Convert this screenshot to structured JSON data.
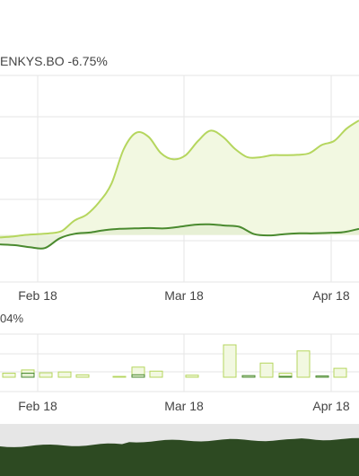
{
  "legend": {
    "series_label": "ENKYS.BO -6.75%"
  },
  "volume_label": "04%",
  "colors": {
    "light_series": "#b5d65e",
    "light_fill": "#f2f8e1",
    "dark_series": "#4a8a2f",
    "navigator": "#2d4a22",
    "navigator_bg": "#e6e6e6",
    "grid": "#e6e6e6"
  },
  "chart_data": [
    {
      "type": "area",
      "x_ticks": [
        "Feb 18",
        "Mar 18",
        "Apr 18"
      ],
      "y_ticks": [
        "",
        "",
        "",
        "",
        ""
      ],
      "series": [
        {
          "name": "",
          "values": [
            -0.6,
            -0.4,
            0.0,
            0.2,
            0.4,
            1.0,
            3.5,
            5.0,
            8.0,
            12.5,
            21.0,
            25.0,
            24.0,
            20.0,
            18.5,
            19.5,
            23.0,
            25.5,
            24.0,
            21.0,
            19.0,
            19.0,
            19.5,
            19.5,
            19.6,
            20.0,
            22.0,
            23.0,
            26.0,
            28.0
          ]
        },
        {
          "name": "",
          "values": [
            -2.3,
            -2.5,
            -3.0,
            -3.2,
            -0.8,
            0.3,
            0.6,
            1.2,
            1.5,
            1.6,
            1.7,
            1.6,
            2.0,
            2.5,
            2.6,
            2.3,
            2.0,
            0.2,
            -0.1,
            0.2,
            0.4,
            0.4,
            0.5,
            0.7,
            1.5
          ]
        }
      ]
    },
    {
      "type": "bar",
      "x_ticks": [
        "Feb 18",
        "Mar 18",
        "Apr 18"
      ],
      "series": [
        {
          "name": "",
          "values": [
            1.0,
            1.1,
            1.3,
            0.6,
            0.2,
            1.5,
            0.5,
            8.0,
            3.5,
            6.5,
            2.2,
            1.8,
            2.5,
            1.0
          ]
        },
        {
          "name": "",
          "values": [
            1.0,
            0.6,
            0.4,
            0.2,
            0.3
          ]
        }
      ]
    }
  ]
}
